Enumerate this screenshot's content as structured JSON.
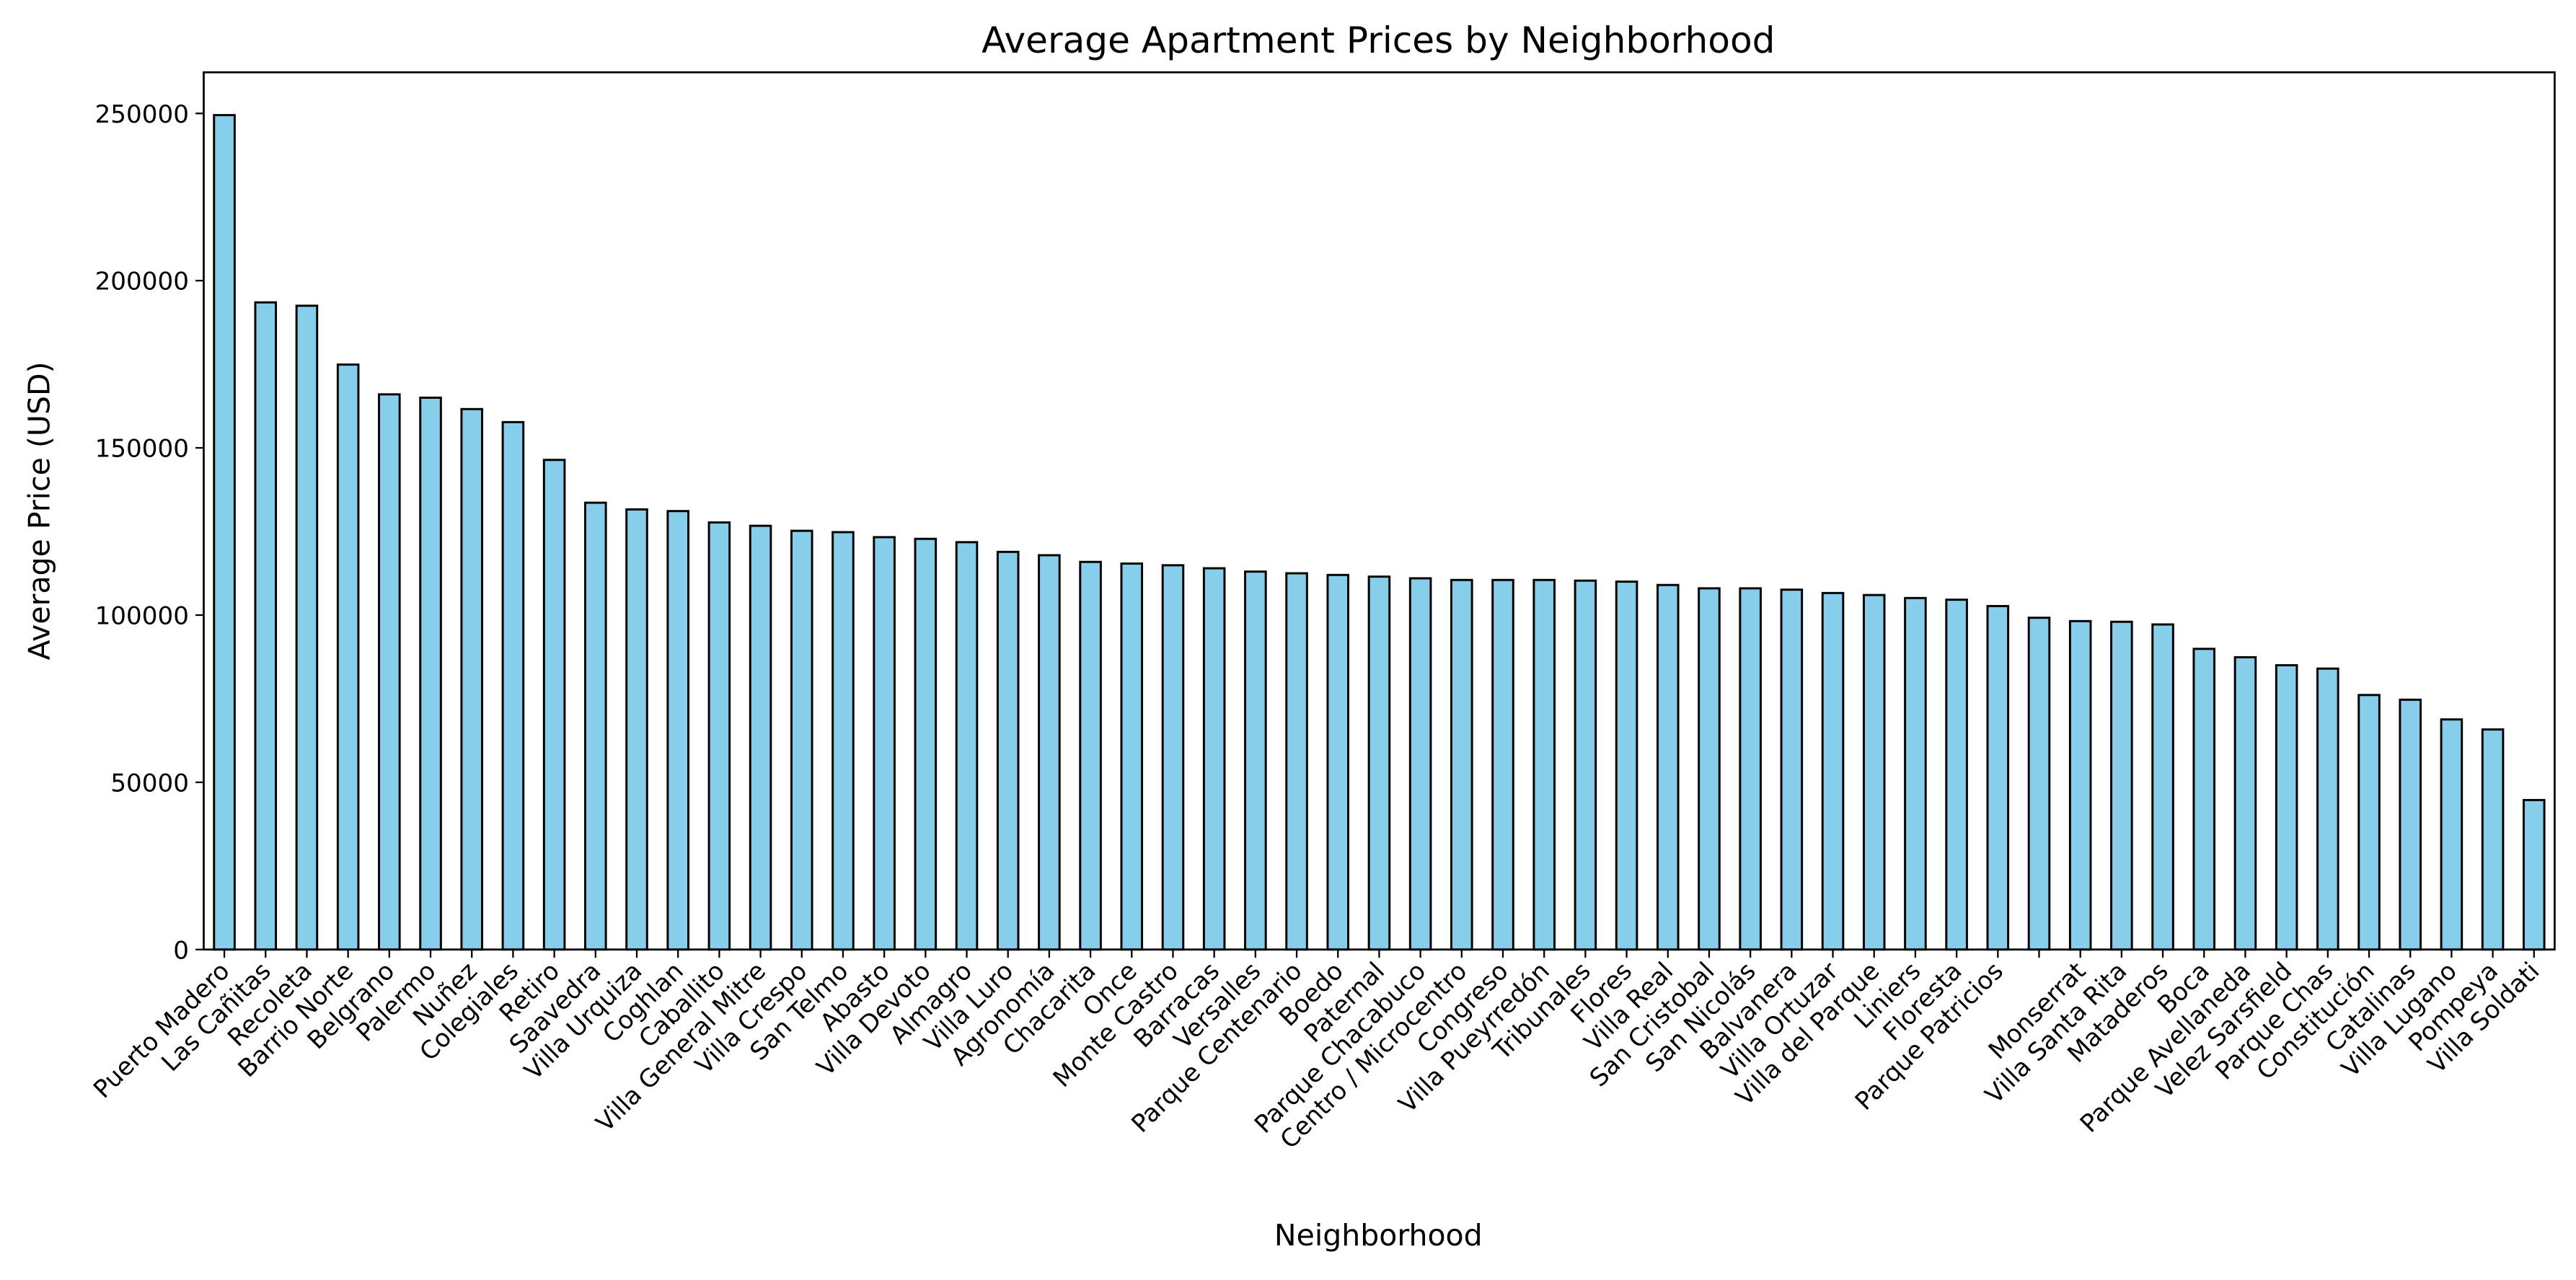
{
  "chart_data": {
    "type": "bar",
    "title": "Average Apartment Prices by Neighborhood",
    "xlabel": "Neighborhood",
    "ylabel": "Average Price (USD)",
    "categories": [
      "Puerto Madero",
      "Las Cañitas",
      "Recoleta",
      "Barrio Norte",
      "Belgrano",
      "Palermo",
      "Nuñez",
      "Colegiales",
      "Retiro",
      "Saavedra",
      "Villa Urquiza",
      "Coghlan",
      "Caballito",
      "Villa General Mitre",
      "Villa Crespo",
      "San Telmo",
      "Abasto",
      "Villa Devoto",
      "Almagro",
      "Villa Luro",
      "Agronomía",
      "Chacarita",
      "Once",
      "Monte Castro",
      "Barracas",
      "Versalles",
      "Parque Centenario",
      "Boedo",
      "Paternal",
      "Parque Chacabuco",
      "Centro / Microcentro",
      "Congreso",
      "Villa Pueyrredón",
      "Tribunales",
      "Flores",
      "Villa Real",
      "San Cristobal",
      "San Nicolás",
      "Balvanera",
      "Villa Ortuzar",
      "Villa del Parque",
      "Liniers",
      "Floresta",
      "Parque Patricios",
      null,
      "Monserrat",
      "Villa Santa Rita",
      "Mataderos",
      "Boca",
      "Parque Avellaneda",
      "Velez Sarsfield",
      "Parque Chas",
      "Constitución",
      "Catalinas",
      "Villa Lugano",
      "Pompeya",
      "Villa Soldati"
    ],
    "values": [
      249500,
      193500,
      192500,
      174900,
      166000,
      165000,
      161600,
      157700,
      146400,
      133600,
      131600,
      131100,
      127700,
      126700,
      125200,
      124800,
      123300,
      122800,
      121800,
      118900,
      117900,
      115900,
      115400,
      114900,
      114000,
      113000,
      112500,
      112000,
      111500,
      111000,
      110500,
      110500,
      110500,
      110300,
      110000,
      109000,
      108000,
      108000,
      107600,
      106600,
      106000,
      105100,
      104600,
      102700,
      99200,
      98200,
      98000,
      97200,
      89900,
      87400,
      85000,
      84000,
      76100,
      74700,
      68800,
      65800,
      44700
    ],
    "color": "#87ceeb",
    "edgecolor": "#000000",
    "ylim": [
      0,
      262300
    ],
    "yticks": [
      0,
      50000,
      100000,
      150000,
      200000,
      250000
    ],
    "grid": false
  }
}
